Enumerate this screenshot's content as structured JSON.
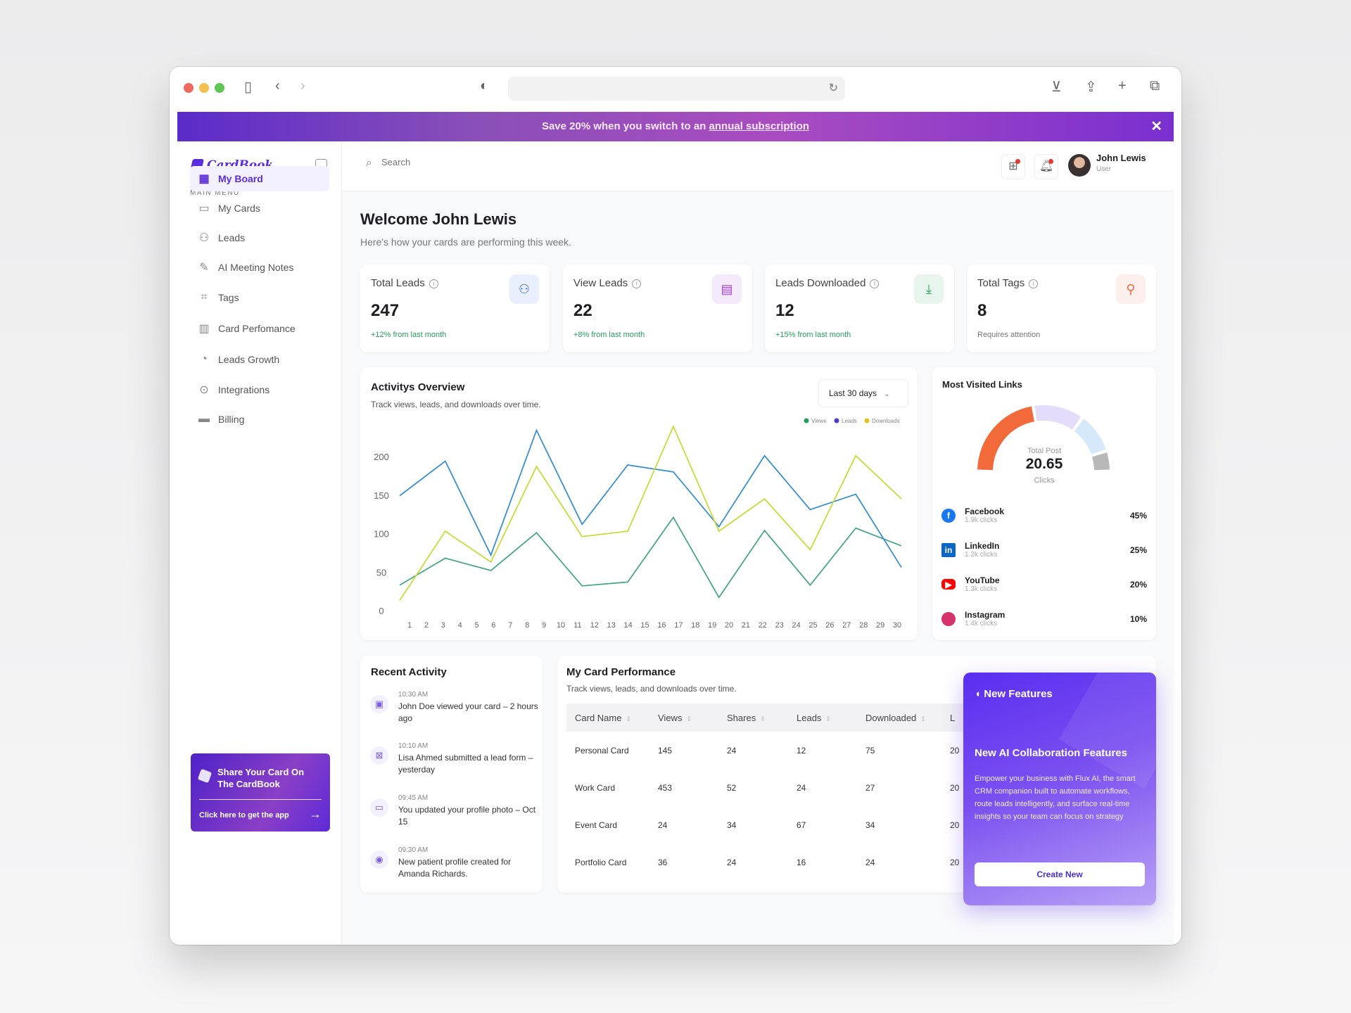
{
  "browser": {
    "icons": [
      "sidebar-icon",
      "back-icon",
      "forward-icon",
      "shield-icon",
      "reload-icon",
      "download-icon",
      "share-icon",
      "new-tab-icon",
      "tabs-icon"
    ]
  },
  "banner": {
    "text": "Save 20% when you switch to an ",
    "link": "annual subscription"
  },
  "brand": {
    "name": "CardBook",
    "color": "#5a2ee0"
  },
  "sidebar": {
    "menu_label": "MAIN MENU",
    "items": [
      {
        "label": "My Board",
        "icon": "grid-icon"
      },
      {
        "label": "My Cards",
        "icon": "id-card-icon"
      },
      {
        "label": "Leads",
        "icon": "users-icon"
      },
      {
        "label": "AI Meeting Notes",
        "icon": "notes-icon"
      },
      {
        "label": "Tags",
        "icon": "tag-icon"
      },
      {
        "label": "Card Perfomance",
        "icon": "bar-chart-icon"
      },
      {
        "label": "Leads Growth",
        "icon": "pie-chart-icon"
      },
      {
        "label": "Integrations",
        "icon": "plug-icon"
      },
      {
        "label": "Billing",
        "icon": "credit-card-icon"
      }
    ],
    "promo": {
      "title": "Share Your Card On The CardBook",
      "cta": "Click here to get the app"
    }
  },
  "header": {
    "search_placeholder": "Search",
    "user": {
      "name": "John Lewis",
      "role": "User"
    }
  },
  "welcome": {
    "title": "Welcome John Lewis",
    "subtitle": "Here's how your cards are performing this week."
  },
  "stats": [
    {
      "title": "Total Leads",
      "value": "247",
      "sub": "+12% from last month",
      "icon": "users-icon",
      "color": "#3b6fe0"
    },
    {
      "title": "View Leads",
      "value": "22",
      "sub": "+8% from last month",
      "icon": "card-icon",
      "color": "#a43de0"
    },
    {
      "title": "Leads Downloaded",
      "value": "12",
      "sub": "+15% from last month",
      "icon": "download-icon",
      "color": "#22a05a"
    },
    {
      "title": "Total Tags",
      "value": "8",
      "sub": "Requires attention",
      "icon": "tag-user-icon",
      "color": "#f06a4a"
    }
  ],
  "activity": {
    "title": "Activitys Overview",
    "subtitle": "Track views, leads, and downloads over time.",
    "range": "Last 30 days"
  },
  "chart_data": {
    "type": "line",
    "title": "Activitys Overview",
    "ylim": [
      0,
      240
    ],
    "yticks": [
      0,
      50,
      100,
      150,
      200
    ],
    "xticks": [
      "1",
      "2",
      "3",
      "4",
      "5",
      "6",
      "7",
      "8",
      "9",
      "10",
      "11",
      "12",
      "13",
      "14",
      "15",
      "16",
      "17",
      "18",
      "19",
      "20",
      "21",
      "22",
      "23",
      "24",
      "25",
      "26",
      "27",
      "28",
      "29",
      "30"
    ],
    "legend": "top-right",
    "grid": false,
    "series": [
      {
        "name": "Views",
        "color": "#4aa58a",
        "legend_color": "#22a05a",
        "values": [
          34,
          69,
          53,
          102,
          33,
          38,
          122,
          18,
          105,
          34,
          108,
          85
        ]
      },
      {
        "name": "Leads",
        "color": "#3a8fd0",
        "legend_color": "#4b3cc9",
        "values": [
          150,
          195,
          73,
          235,
          113,
          190,
          181,
          110,
          202,
          132,
          152,
          57
        ]
      },
      {
        "name": "Downloads",
        "color": "#c8dc3c",
        "legend_color": "#e6c21a",
        "values": [
          14,
          104,
          64,
          188,
          97,
          104,
          240,
          104,
          146,
          80,
          202,
          146
        ]
      }
    ]
  },
  "links": {
    "title": "Most Visited Links",
    "center_label": "Total Post",
    "center_value": "20.65",
    "center_unit": "Clicks",
    "items": [
      {
        "name": "Facebook",
        "clicks": "1.9k clicks",
        "pct": "45%",
        "share": 45,
        "color": "#f26a3a",
        "icon": "facebook-icon",
        "icon_color": "#1877f2"
      },
      {
        "name": "LinkedIn",
        "clicks": "1.2k clicks",
        "pct": "25%",
        "share": 25,
        "color": "#e3dcfa",
        "icon": "linkedin-icon",
        "icon_color": "#0a66c2"
      },
      {
        "name": "YouTube",
        "clicks": "1.3k clicks",
        "pct": "20%",
        "share": 20,
        "color": "#d6e9fb",
        "icon": "youtube-icon",
        "icon_color": "#ff0000"
      },
      {
        "name": "Instagram",
        "clicks": "1.4k clicks",
        "pct": "10%",
        "share": 10,
        "color": "#b8b8b8",
        "icon": "instagram-icon",
        "icon_color": "#d6336c"
      }
    ]
  },
  "recent": {
    "title": "Recent Activity",
    "items": [
      {
        "time": "10:30 AM",
        "text": "John Doe viewed your card – 2 hours ago",
        "icon": "calendar-check-icon"
      },
      {
        "time": "10:10 AM",
        "text": "Lisa Ahmed submitted a lead form – yesterday",
        "icon": "form-icon"
      },
      {
        "time": "09:45 AM",
        "text": "You updated your profile photo – Oct 15",
        "icon": "chat-icon"
      },
      {
        "time": "09:30 AM",
        "text": "New patient profile created for Amanda Richards.",
        "icon": "user-add-icon"
      }
    ]
  },
  "performance": {
    "title": "My Card Performance",
    "subtitle": "Track views, leads, and downloads over time.",
    "columns": [
      "Card Name",
      "Views",
      "Shares",
      "Leads",
      "Downloaded",
      "L"
    ],
    "rows": [
      [
        "Personal Card",
        "145",
        "24",
        "12",
        "75",
        "20"
      ],
      [
        "Work Card",
        "453",
        "52",
        "24",
        "27",
        "20"
      ],
      [
        "Event Card",
        "24",
        "34",
        "67",
        "34",
        "20"
      ],
      [
        "Portfolio Card",
        "36",
        "24",
        "16",
        "24",
        "20"
      ]
    ]
  },
  "features": {
    "badge": "New Features",
    "title": "New AI Collaboration Features",
    "body": "Empower your business with Flux AI, the smart CRM companion built to automate workflows, route leads intelligently, and surface real-time insights so your team can focus on strategy",
    "button": "Create New"
  }
}
